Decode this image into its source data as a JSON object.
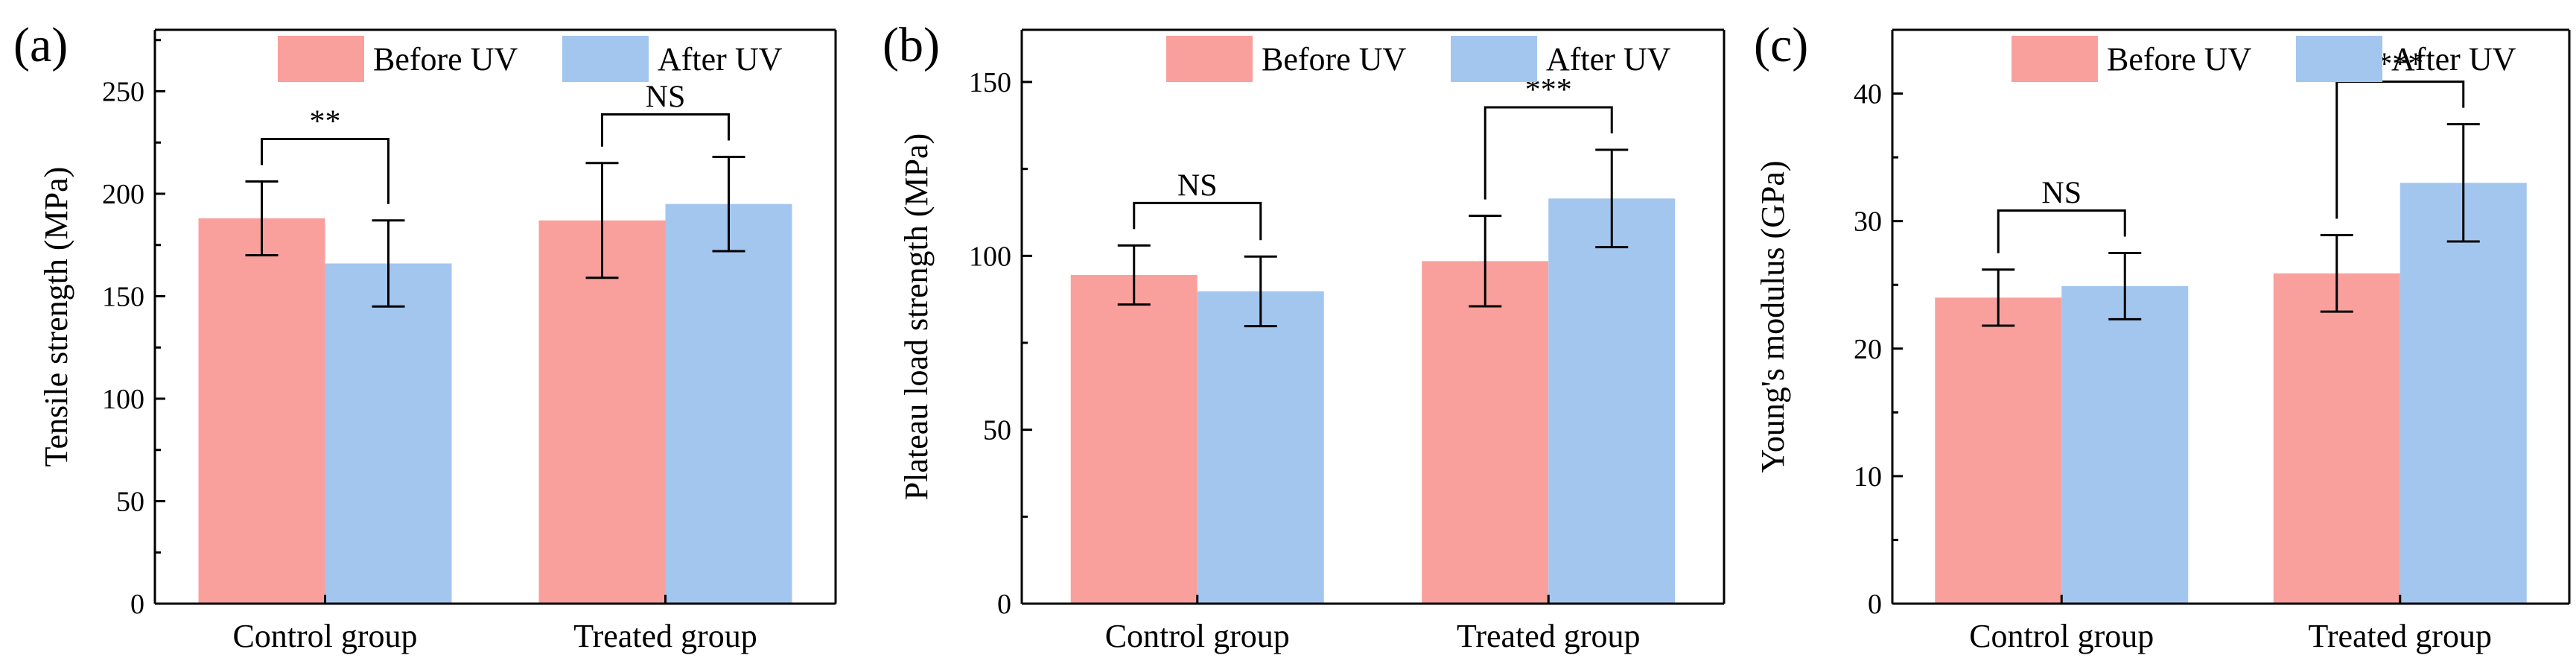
{
  "colors": {
    "before_uv": "#f9a09d",
    "after_uv": "#a3c6ef",
    "axis": "#000000"
  },
  "chart_data": [
    {
      "type": "bar",
      "panel_label": "(a)",
      "title": "",
      "xlabel": "",
      "ylabel": "Tensile strength (MPa)",
      "ylim": [
        0,
        280
      ],
      "yticks": [
        0,
        50,
        100,
        150,
        200,
        250
      ],
      "ytick_labels": [
        "0",
        "50",
        "100",
        "150",
        "200",
        "250"
      ],
      "categories": [
        "Control group",
        "Treated group"
      ],
      "legend_position": "top-right",
      "series": [
        {
          "name": "Before UV",
          "color_key": "before_uv",
          "values": [
            188,
            187
          ],
          "errors": [
            18,
            28
          ]
        },
        {
          "name": "After UV",
          "color_key": "after_uv",
          "values": [
            166,
            195
          ],
          "errors": [
            21,
            23
          ]
        }
      ],
      "significance": [
        "**",
        "NS"
      ]
    },
    {
      "type": "bar",
      "panel_label": "(b)",
      "title": "",
      "xlabel": "",
      "ylabel": "Plateau load strength (MPa)",
      "ylim": [
        0,
        165
      ],
      "yticks": [
        0,
        50,
        100,
        150
      ],
      "ytick_labels": [
        "0",
        "50",
        "100",
        "150"
      ],
      "categories": [
        "Control group",
        "Treated group"
      ],
      "legend_position": "top-right",
      "series": [
        {
          "name": "Before UV",
          "color_key": "before_uv",
          "values": [
            94.5,
            98.5
          ],
          "errors": [
            8.5,
            13
          ]
        },
        {
          "name": "After UV",
          "color_key": "after_uv",
          "values": [
            89.8,
            116.5
          ],
          "errors": [
            10,
            14
          ]
        }
      ],
      "significance": [
        "NS",
        "***"
      ]
    },
    {
      "type": "bar",
      "panel_label": "(c)",
      "title": "",
      "xlabel": "",
      "ylabel": "Young's modulus (GPa)",
      "ylim": [
        0,
        45
      ],
      "yticks": [
        0,
        10,
        20,
        30,
        40
      ],
      "ytick_labels": [
        "0",
        "10",
        "20",
        "30",
        "40"
      ],
      "categories": [
        "Control group",
        "Treated group"
      ],
      "legend_position": "top-right",
      "series": [
        {
          "name": "Before UV",
          "color_key": "before_uv",
          "values": [
            24,
            25.9
          ],
          "errors": [
            2.2,
            3
          ]
        },
        {
          "name": "After UV",
          "color_key": "after_uv",
          "values": [
            24.9,
            33
          ],
          "errors": [
            2.6,
            4.6
          ]
        }
      ],
      "significance": [
        "NS",
        "***"
      ]
    }
  ]
}
